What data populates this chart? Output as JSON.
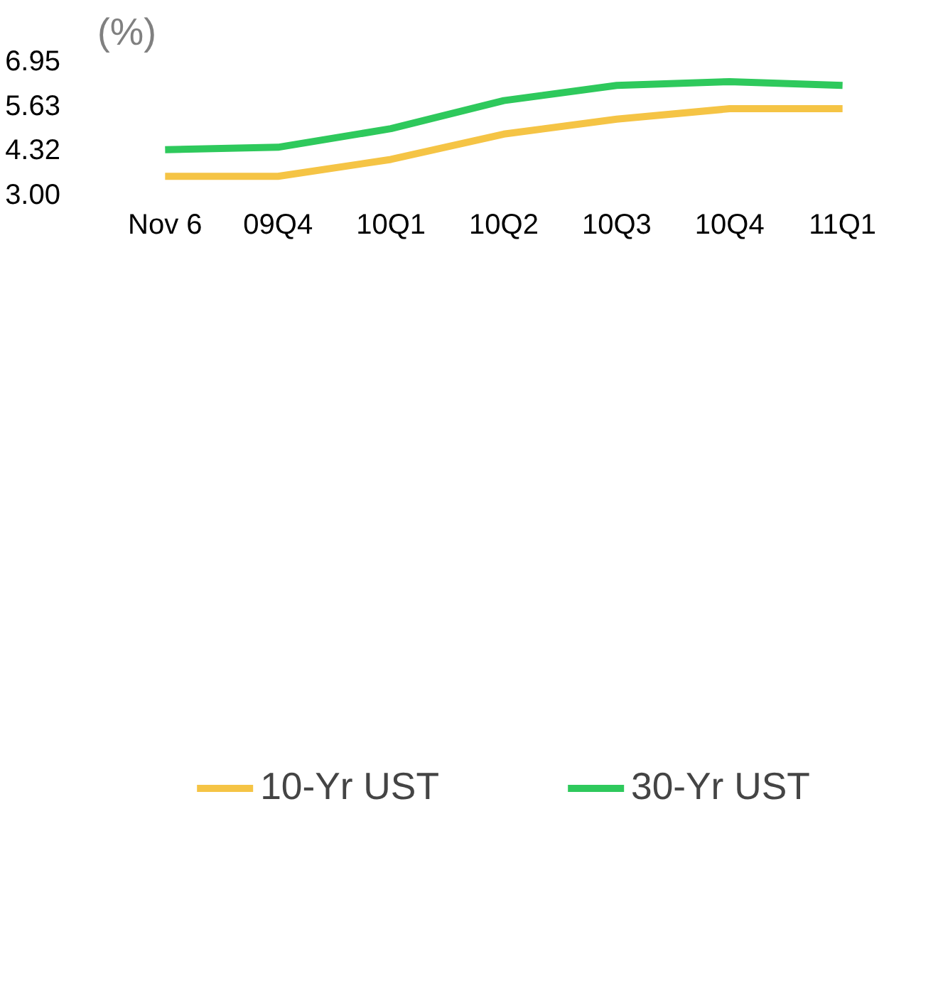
{
  "chart_data": {
    "type": "line",
    "ylabel": "(%)",
    "categories": [
      "Nov 6",
      "09Q4",
      "10Q1",
      "10Q2",
      "10Q3",
      "10Q4",
      "11Q1"
    ],
    "series": [
      {
        "name": "10-Yr UST",
        "color": "#f5c445",
        "values": [
          3.52,
          3.52,
          4.02,
          4.77,
          5.21,
          5.52,
          5.52
        ]
      },
      {
        "name": "30-Yr UST",
        "color": "#2ec95c",
        "values": [
          4.31,
          4.38,
          4.93,
          5.76,
          6.21,
          6.32,
          6.21
        ]
      }
    ],
    "ylim": [
      3.0,
      6.95
    ],
    "yticks": [
      {
        "value": 3.0,
        "label": "3.00"
      },
      {
        "value": 4.32,
        "label": "4.32"
      },
      {
        "value": 5.63,
        "label": "5.63"
      },
      {
        "value": 6.95,
        "label": "6.95"
      }
    ],
    "grid": false,
    "legend": "bottom",
    "marker": "none",
    "line_style": "solid"
  }
}
